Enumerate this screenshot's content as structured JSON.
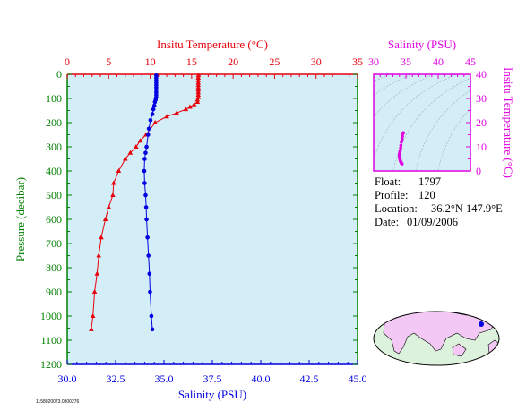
{
  "colors": {
    "temperature": "#e8000b",
    "salinity": "#0000e0",
    "ts": "#e000e0",
    "plot_bg": "#d4eef7",
    "axis_green": "#008000",
    "land": "#f4c8f4",
    "ocean": "#ddf2dd"
  },
  "info": {
    "float_label": "Float:",
    "float_value": "1797",
    "profile_label": "Profile:",
    "profile_value": "120",
    "location_label": "Location:",
    "location_value": "36.2°N  147.9°E",
    "date_label": "Date:",
    "date_value": "01/09/2006"
  },
  "footnote": "1158020073.0300276",
  "chart_data": [
    {
      "type": "line",
      "ylabel": "Pressure (decibar)",
      "y_reversed": true,
      "ylim": [
        0,
        1200
      ],
      "yticks": [
        0,
        100,
        200,
        300,
        400,
        500,
        600,
        700,
        800,
        900,
        1000,
        1100,
        1200
      ],
      "x_bottom": {
        "label": "Salinity (PSU)",
        "lim": [
          30,
          45
        ],
        "ticks": [
          "30.0",
          "32.5",
          "35.0",
          "37.5",
          "40.0",
          "42.5",
          "45.0"
        ]
      },
      "x_top": {
        "label": "Insitu Temperature (°C)",
        "lim": [
          0,
          35
        ],
        "ticks": [
          "0",
          "5",
          "10",
          "15",
          "20",
          "25",
          "30",
          "35"
        ]
      },
      "series": [
        {
          "axis": "top",
          "marker": "triangle",
          "points": [
            [
              15.8,
              5
            ],
            [
              15.8,
              15
            ],
            [
              15.8,
              25
            ],
            [
              15.8,
              35
            ],
            [
              15.8,
              45
            ],
            [
              15.8,
              55
            ],
            [
              15.8,
              65
            ],
            [
              15.8,
              75
            ],
            [
              15.8,
              85
            ],
            [
              15.8,
              95
            ],
            [
              15.7,
              105
            ],
            [
              15.7,
              115
            ],
            [
              15.3,
              125
            ],
            [
              14.8,
              135
            ],
            [
              14.3,
              145
            ],
            [
              13.2,
              160
            ],
            [
              12.0,
              175
            ],
            [
              10.6,
              200
            ],
            [
              9.5,
              250
            ],
            [
              8.8,
              275
            ],
            [
              8.3,
              300
            ],
            [
              7.6,
              325
            ],
            [
              7.0,
              350
            ],
            [
              6.2,
              400
            ],
            [
              5.6,
              450
            ],
            [
              5.5,
              500
            ],
            [
              5.0,
              550
            ],
            [
              4.6,
              600
            ],
            [
              4.1,
              675
            ],
            [
              3.8,
              750
            ],
            [
              3.6,
              825
            ],
            [
              3.3,
              900
            ],
            [
              3.1,
              1000
            ],
            [
              2.9,
              1055
            ]
          ]
        },
        {
          "axis": "bottom",
          "marker": "circle",
          "points": [
            [
              34.6,
              5
            ],
            [
              34.6,
              15
            ],
            [
              34.6,
              25
            ],
            [
              34.6,
              35
            ],
            [
              34.6,
              45
            ],
            [
              34.6,
              55
            ],
            [
              34.6,
              65
            ],
            [
              34.6,
              75
            ],
            [
              34.6,
              85
            ],
            [
              34.6,
              95
            ],
            [
              34.57,
              105
            ],
            [
              34.53,
              115
            ],
            [
              34.5,
              130
            ],
            [
              34.45,
              145
            ],
            [
              34.4,
              165
            ],
            [
              34.3,
              190
            ],
            [
              34.22,
              225
            ],
            [
              34.18,
              250
            ],
            [
              34.1,
              300
            ],
            [
              34.05,
              325
            ],
            [
              34.0,
              350
            ],
            [
              33.98,
              400
            ],
            [
              34.0,
              450
            ],
            [
              34.05,
              500
            ],
            [
              34.08,
              550
            ],
            [
              34.1,
              600
            ],
            [
              34.15,
              675
            ],
            [
              34.2,
              750
            ],
            [
              34.25,
              825
            ],
            [
              34.28,
              900
            ],
            [
              34.35,
              1000
            ],
            [
              34.4,
              1055
            ]
          ]
        }
      ]
    },
    {
      "type": "scatter",
      "xlabel": "Salinity (PSU)",
      "ylabel": "Insitu Temperature (°C)",
      "xlim": [
        30,
        45
      ],
      "ylim": [
        0,
        40
      ],
      "xticks": [
        "30",
        "35",
        "40",
        "45"
      ],
      "yticks": [
        "0",
        "10",
        "20",
        "30",
        "40"
      ],
      "points": [
        [
          34.6,
          15.8
        ],
        [
          34.6,
          15.8
        ],
        [
          34.57,
          15.7
        ],
        [
          34.5,
          15.3
        ],
        [
          34.45,
          14.3
        ],
        [
          34.4,
          13.2
        ],
        [
          34.3,
          12.0
        ],
        [
          34.22,
          10.6
        ],
        [
          34.18,
          9.5
        ],
        [
          34.1,
          8.3
        ],
        [
          34.05,
          7.6
        ],
        [
          34.0,
          7.0
        ],
        [
          33.98,
          6.2
        ],
        [
          34.0,
          5.6
        ],
        [
          34.05,
          5.5
        ],
        [
          34.08,
          5.0
        ],
        [
          34.1,
          4.6
        ],
        [
          34.15,
          4.1
        ],
        [
          34.2,
          3.8
        ],
        [
          34.25,
          3.6
        ],
        [
          34.28,
          3.3
        ],
        [
          34.35,
          3.1
        ],
        [
          34.4,
          2.9
        ]
      ]
    }
  ]
}
